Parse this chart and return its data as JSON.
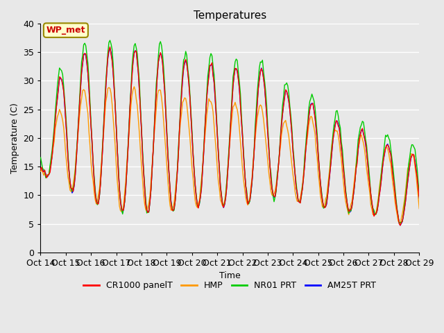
{
  "title": "Temperatures",
  "xlabel": "Time",
  "ylabel": "Temperature (C)",
  "ylim": [
    0,
    40
  ],
  "xlim": [
    0,
    360
  ],
  "fig_bg_color": "#e8e8e8",
  "plot_bg_color": "#e8e8e8",
  "tick_labels": [
    "Oct 14",
    "Oct 15",
    "Oct 16",
    "Oct 17",
    "Oct 18",
    "Oct 19",
    "Oct 20",
    "Oct 21",
    "Oct 22",
    "Oct 23",
    "Oct 24",
    "Oct 25",
    "Oct 26",
    "Oct 27",
    "Oct 28",
    "Oct 29"
  ],
  "tick_positions": [
    0,
    24,
    48,
    72,
    96,
    120,
    144,
    168,
    192,
    216,
    240,
    264,
    288,
    312,
    336,
    360
  ],
  "legend_labels": [
    "CR1000 panelT",
    "HMP",
    "NR01 PRT",
    "AM25T PRT"
  ],
  "legend_colors": [
    "#ff0000",
    "#ff9900",
    "#00cc00",
    "#0000ff"
  ],
  "annotation_text": "WP_met",
  "annotation_color": "#cc0000",
  "annotation_bg": "#ffffcc",
  "annotation_border": "#998800",
  "grid_color": "#ffffff",
  "line_width": 1.0,
  "yticks": [
    0,
    5,
    10,
    15,
    20,
    25,
    30,
    35,
    40
  ],
  "day_peaks": [
    15,
    35,
    35,
    36,
    35,
    35,
    33,
    33,
    32,
    32,
    27,
    26,
    22,
    22,
    22,
    23
  ],
  "day_mins": [
    14,
    11,
    9,
    7,
    7,
    7,
    8,
    8,
    8,
    10,
    9,
    8,
    7,
    7,
    7,
    3
  ]
}
